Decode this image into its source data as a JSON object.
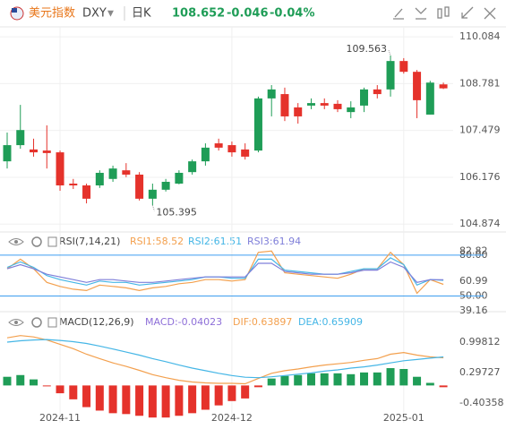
{
  "header": {
    "name": "美元指数",
    "symbol": "DXY",
    "period": "日K",
    "price": 108.652,
    "change": -0.046,
    "change_pct": "-0.04%"
  },
  "chart_data": [
    {
      "type": "candlestick",
      "categories": [
        null,
        null,
        null,
        null,
        "2024-11",
        null,
        null,
        null,
        null,
        null,
        null,
        null,
        null,
        null,
        null,
        null,
        null,
        "2024-12",
        null,
        null,
        null,
        null,
        null,
        null,
        null,
        null,
        null,
        null,
        null,
        null,
        "2025-01",
        null,
        null,
        null
      ],
      "candles": [
        [
          106.62,
          107.42,
          106.42,
          107.07
        ],
        [
          107.07,
          108.19,
          106.97,
          107.49
        ],
        [
          106.95,
          107.25,
          106.75,
          106.87
        ],
        [
          106.92,
          107.62,
          106.42,
          106.85
        ],
        [
          106.87,
          106.92,
          105.8,
          105.95
        ],
        [
          106.0,
          106.13,
          105.85,
          105.95
        ],
        [
          105.95,
          106.0,
          105.45,
          105.58
        ],
        [
          105.95,
          106.37,
          105.88,
          106.3
        ],
        [
          106.13,
          106.5,
          106.05,
          106.42
        ],
        [
          106.37,
          106.57,
          106.18,
          106.25
        ],
        [
          106.25,
          106.32,
          105.53,
          105.58
        ],
        [
          105.58,
          106.0,
          105.395,
          105.83
        ],
        [
          105.83,
          106.13,
          105.78,
          106.05
        ],
        [
          106.0,
          106.37,
          105.98,
          106.3
        ],
        [
          106.32,
          106.67,
          106.25,
          106.62
        ],
        [
          106.62,
          107.12,
          106.5,
          107.0
        ],
        [
          107.12,
          107.25,
          106.92,
          107.0
        ],
        [
          107.07,
          107.17,
          106.75,
          106.87
        ],
        [
          106.95,
          107.12,
          106.67,
          106.75
        ],
        [
          106.92,
          108.42,
          106.87,
          108.37
        ],
        [
          108.37,
          108.74,
          107.87,
          108.62
        ],
        [
          108.49,
          108.67,
          107.74,
          107.87
        ],
        [
          108.12,
          108.24,
          107.67,
          107.87
        ],
        [
          108.17,
          108.37,
          108.07,
          108.24
        ],
        [
          108.24,
          108.37,
          108.07,
          108.17
        ],
        [
          108.22,
          108.32,
          107.99,
          108.07
        ],
        [
          107.99,
          108.29,
          107.82,
          108.12
        ],
        [
          108.17,
          108.67,
          107.99,
          108.62
        ],
        [
          108.62,
          108.74,
          108.37,
          108.49
        ],
        [
          108.62,
          109.563,
          108.42,
          109.41
        ],
        [
          109.41,
          109.49,
          109.06,
          109.11
        ],
        [
          109.11,
          109.16,
          107.82,
          108.32
        ],
        [
          107.92,
          108.86,
          107.92,
          108.81
        ],
        [
          108.76,
          108.81,
          108.63,
          108.65
        ]
      ],
      "up_color": "#1f9d57",
      "down_color": "#e5322b",
      "ylim": [
        104.68,
        110.36
      ],
      "yticks": [
        110.084,
        108.781,
        107.479,
        106.176,
        104.874
      ],
      "grid": true
    },
    {
      "type": "line",
      "title": "RSI(7,14,21)",
      "series": [
        {
          "name": "RSI1:58.52",
          "color": "#f3a04e",
          "values": [
            70,
            77,
            70,
            60,
            57,
            55,
            54,
            58,
            57,
            56,
            54,
            56,
            57,
            59,
            60,
            62,
            62,
            61,
            62,
            82,
            83,
            67,
            66,
            65,
            64,
            63,
            66,
            70,
            70,
            82,
            73,
            52,
            62,
            58.52
          ]
        },
        {
          "name": "RSI2:61.51",
          "color": "#45b6e6",
          "values": [
            71,
            75,
            71,
            65,
            62,
            60,
            58,
            61,
            60,
            60,
            58,
            59,
            60,
            61,
            62,
            64,
            64,
            63,
            63,
            77,
            77,
            69,
            68,
            67,
            66,
            66,
            68,
            70,
            70,
            78,
            73,
            58,
            62,
            61.51
          ]
        },
        {
          "name": "RSI3:61.94",
          "color": "#7f7fd9",
          "values": [
            70,
            73,
            70,
            66,
            64,
            62,
            60,
            62,
            62,
            61,
            60,
            60,
            61,
            62,
            63,
            64,
            64,
            64,
            64,
            74,
            74,
            68,
            67,
            66,
            66,
            66,
            67,
            69,
            69,
            75,
            71,
            60,
            62,
            61.94
          ]
        }
      ],
      "ylim": [
        38.5,
        84.5
      ],
      "yticks": [
        {
          "value": 80,
          "label": "80.00"
        },
        82.82,
        60.99,
        {
          "value": 50,
          "label": "50.00"
        },
        39.16
      ],
      "reference_lines": [
        80,
        50
      ],
      "reference_color": "#3d9ef0"
    },
    {
      "type": "macd",
      "title": "MACD(12,26,9)",
      "series": [
        {
          "name": "MACD:-0.04023",
          "color": "#8e6fd8",
          "values": [
            0.2,
            0.24,
            0.14,
            -0.02,
            -0.18,
            -0.32,
            -0.5,
            -0.58,
            -0.64,
            -0.66,
            -0.7,
            -0.74,
            -0.74,
            -0.7,
            -0.64,
            -0.56,
            -0.46,
            -0.36,
            -0.3,
            -0.04,
            0.16,
            0.22,
            0.24,
            0.28,
            0.28,
            0.28,
            0.26,
            0.3,
            0.3,
            0.4,
            0.38,
            0.2,
            0.06,
            -0.04023
          ]
        },
        {
          "name": "DIF:0.63897",
          "color": "#f3a04e",
          "values": [
            1.1,
            1.15,
            1.12,
            1.05,
            0.95,
            0.85,
            0.72,
            0.62,
            0.52,
            0.44,
            0.35,
            0.25,
            0.18,
            0.12,
            0.08,
            0.06,
            0.05,
            0.05,
            0.04,
            0.16,
            0.28,
            0.34,
            0.38,
            0.43,
            0.47,
            0.5,
            0.53,
            0.58,
            0.62,
            0.72,
            0.76,
            0.7,
            0.66,
            0.63897
          ]
        },
        {
          "name": "DEA:0.65909",
          "color": "#45b6e6",
          "values": [
            1.0,
            1.03,
            1.05,
            1.06,
            1.04,
            1.01,
            0.97,
            0.91,
            0.84,
            0.77,
            0.7,
            0.62,
            0.55,
            0.47,
            0.4,
            0.34,
            0.28,
            0.23,
            0.19,
            0.18,
            0.2,
            0.23,
            0.26,
            0.29,
            0.33,
            0.36,
            0.4,
            0.43,
            0.47,
            0.52,
            0.57,
            0.6,
            0.63,
            0.65909
          ]
        }
      ],
      "up_color": "#1f9d57",
      "down_color": "#e5322b",
      "ylim": [
        -0.86,
        1.62
      ],
      "yticks": [
        0.99812,
        0.29727,
        -0.40358
      ]
    }
  ]
}
